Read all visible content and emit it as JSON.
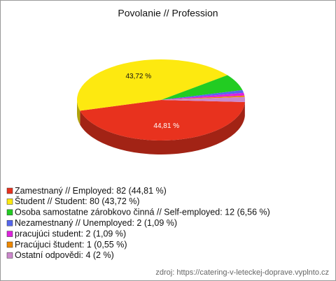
{
  "chart_data": {
    "type": "pie",
    "title": "Povolanie // Profession",
    "categories": [
      "Zamestnaný // Employed: 82 (44,81 %)",
      "Študent // Student: 80 (43,72 %)",
      "Osoba samostatne zárobkovo činná // Self-employed: 12 (6,56 %)",
      "Nezamestnaný // Unemployed: 2 (1,09 %)",
      "pracujúci student: 2 (1,09 %)",
      "Pracújuci študent: 1 (0,55 %)",
      "Ostatní odpovědi: 4 (2 %)"
    ],
    "values": [
      44.81,
      43.72,
      6.56,
      1.09,
      1.09,
      0.55,
      2
    ],
    "value_labels": [
      "44,81 %",
      "43,72 %",
      null,
      null,
      null,
      null,
      null
    ],
    "colors": [
      "#e8321e",
      "#fde910",
      "#22cc22",
      "#5566ee",
      "#dd22dd",
      "#ee8800",
      "#cc88cc"
    ],
    "legend": "bottom-left",
    "source": "zdroj: https://catering-v-leteckej-doprave.vyplnto.cz"
  }
}
